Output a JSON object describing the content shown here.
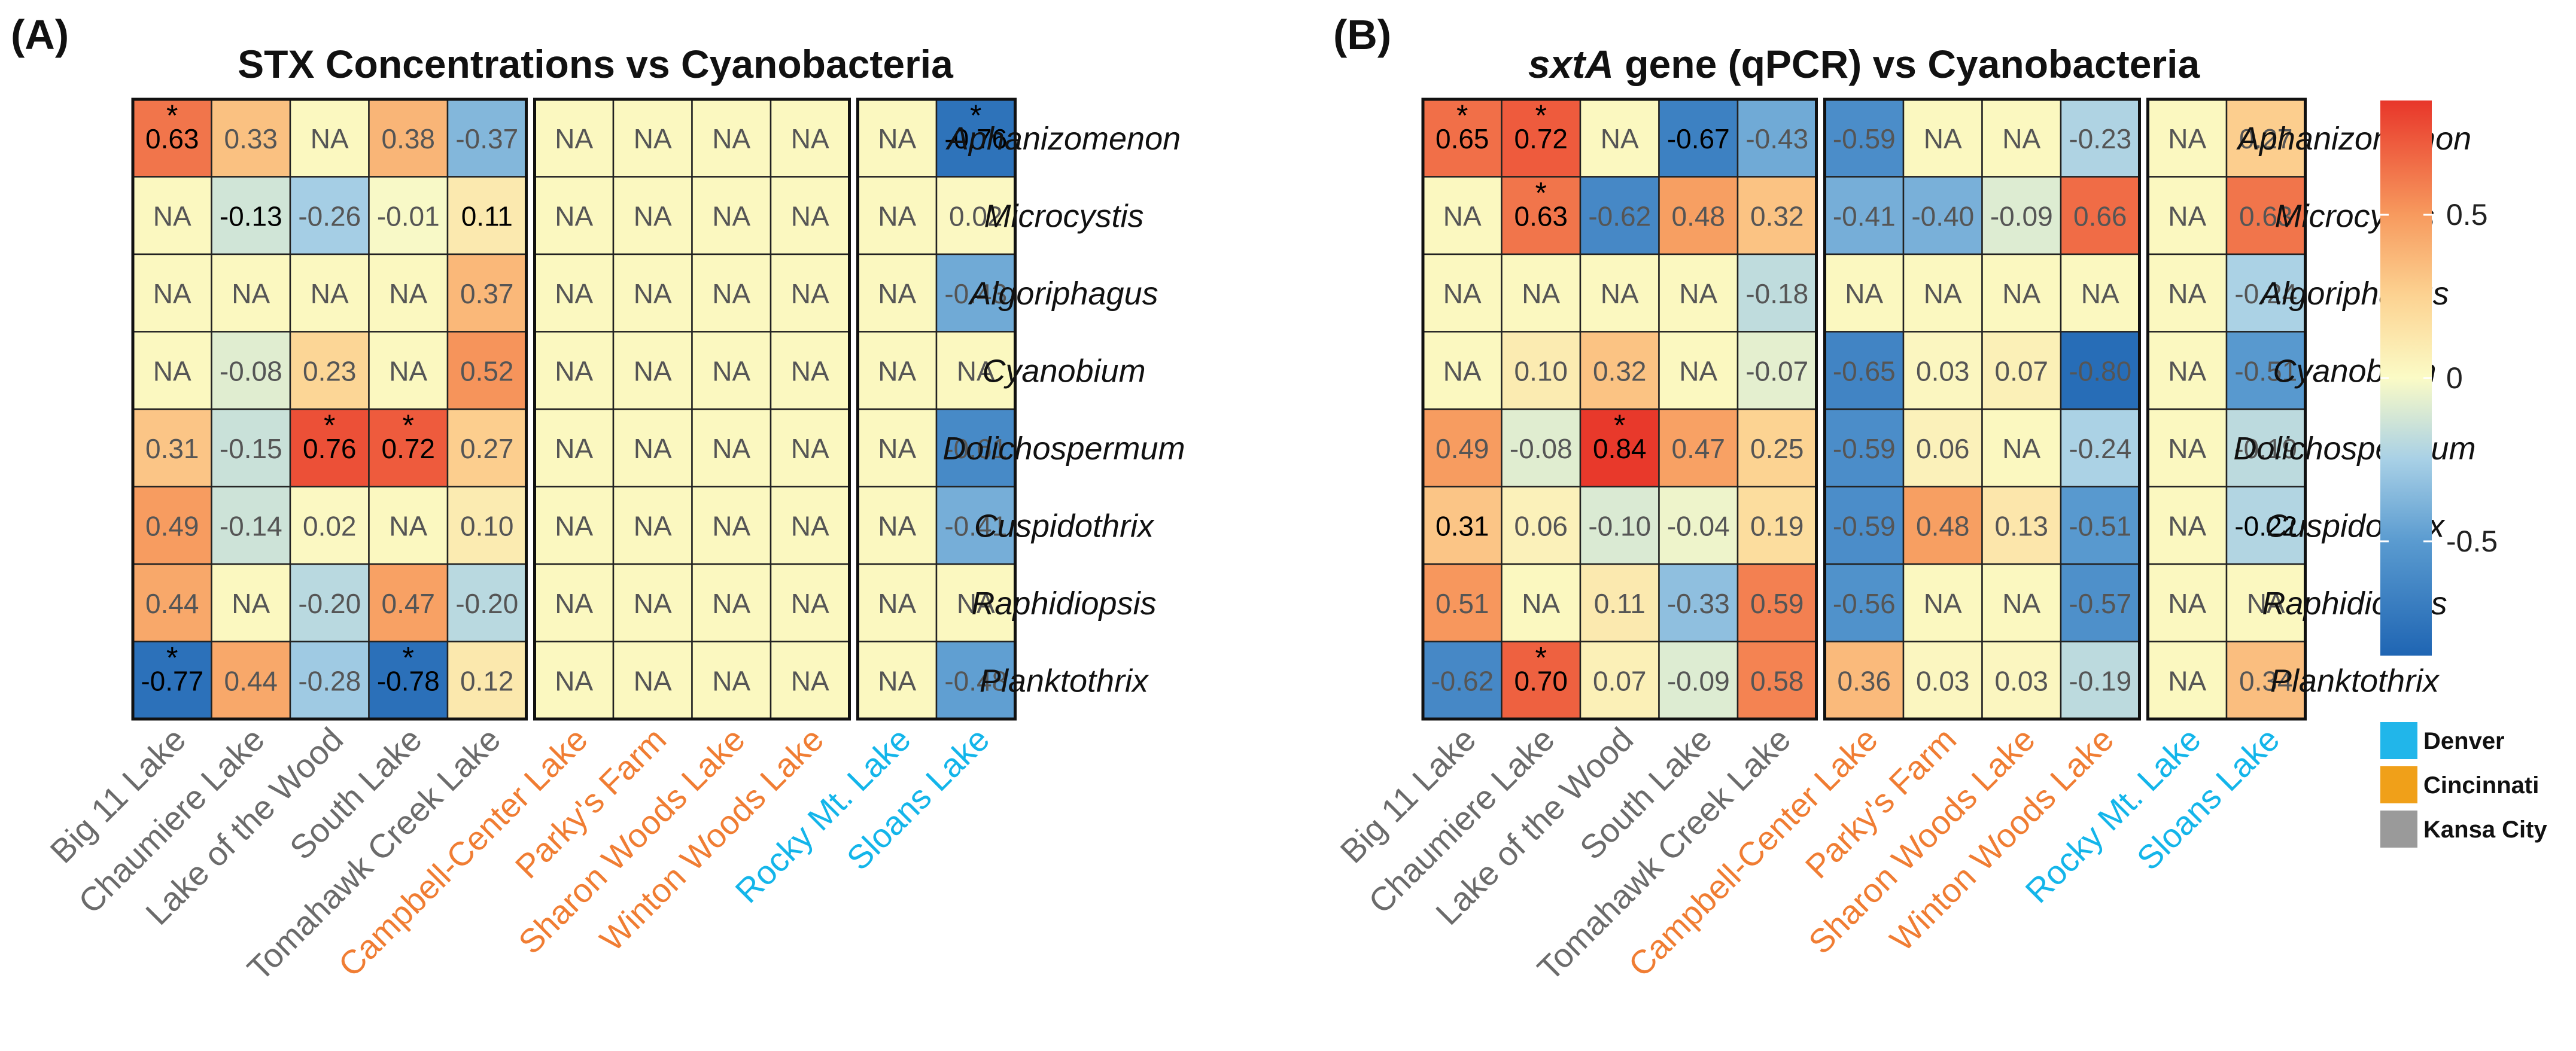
{
  "figure_labels": {
    "a": "(A)",
    "b": "(B)"
  },
  "chart_data": [
    {
      "type": "heatmap",
      "panel": "(A)",
      "title": "STX Concentrations vs Cyanobacteria",
      "title_italic": "",
      "title_rest": "STX Concentrations vs Cyanobacteria",
      "rows": [
        "Aphanizomenon",
        "Microcystis",
        "Algoriphagus",
        "Cyanobium",
        "Dolichospermum",
        "Cuspidothrix",
        "Raphidiopsis",
        "Planktothrix"
      ],
      "columns": [
        "Big 11 Lake",
        "Chaumiere Lake",
        "Lake of the Wood",
        "South Lake",
        "Tomahawk Creek Lake",
        "Campbell-Center Lake",
        "Parky's Farm",
        "Sharon Woods Lake",
        "Winton Woods Lake",
        "Rocky Mt. Lake",
        "Sloans Lake"
      ],
      "column_groups": [
        {
          "city": "Kansa City",
          "count": 5
        },
        {
          "city": "Cincinnati",
          "count": 4
        },
        {
          "city": "Denver",
          "count": 2
        }
      ],
      "values": [
        [
          0.63,
          0.33,
          null,
          0.38,
          -0.37,
          null,
          null,
          null,
          null,
          null,
          -0.76
        ],
        [
          null,
          -0.13,
          -0.26,
          -0.01,
          0.11,
          null,
          null,
          null,
          null,
          null,
          0.02
        ],
        [
          null,
          null,
          null,
          null,
          0.37,
          null,
          null,
          null,
          null,
          null,
          -0.43
        ],
        [
          null,
          -0.08,
          0.23,
          null,
          0.52,
          null,
          null,
          null,
          null,
          null,
          null
        ],
        [
          0.31,
          -0.15,
          0.76,
          0.72,
          0.27,
          null,
          null,
          null,
          null,
          null,
          -0.61
        ],
        [
          0.49,
          -0.14,
          0.02,
          null,
          0.1,
          null,
          null,
          null,
          null,
          null,
          -0.41
        ],
        [
          0.44,
          null,
          -0.2,
          0.47,
          -0.2,
          null,
          null,
          null,
          null,
          null,
          null
        ],
        [
          -0.77,
          0.44,
          -0.28,
          -0.78,
          0.12,
          null,
          null,
          null,
          null,
          null,
          -0.48
        ]
      ],
      "labels": [
        [
          "0.63",
          "0.33",
          "NA",
          "0.38",
          "-0.37",
          "NA",
          "NA",
          "NA",
          "NA",
          "NA",
          "-0.76"
        ],
        [
          "NA",
          "-0.13",
          "-0.26",
          "-0.01",
          "0.11",
          "NA",
          "NA",
          "NA",
          "NA",
          "NA",
          "0.02"
        ],
        [
          "NA",
          "NA",
          "NA",
          "NA",
          "0.37",
          "NA",
          "NA",
          "NA",
          "NA",
          "NA",
          "-0.43"
        ],
        [
          "NA",
          "-0.08",
          "0.23",
          "NA",
          "0.52",
          "NA",
          "NA",
          "NA",
          "NA",
          "NA",
          "NA"
        ],
        [
          "0.31",
          "-0.15",
          "0.76",
          "0.72",
          "0.27",
          "NA",
          "NA",
          "NA",
          "NA",
          "NA",
          "-0.61"
        ],
        [
          "0.49",
          "-0.14",
          "0.02",
          "NA",
          "0.10",
          "NA",
          "NA",
          "NA",
          "NA",
          "NA",
          "-0.41"
        ],
        [
          "0.44",
          "NA",
          "-0.20",
          "0.47",
          "-0.20",
          "NA",
          "NA",
          "NA",
          "NA",
          "NA",
          "NA"
        ],
        [
          "-0.77",
          "0.44",
          "-0.28",
          "-0.78",
          "0.12",
          "NA",
          "NA",
          "NA",
          "NA",
          "NA",
          "-0.48"
        ]
      ],
      "significant": [
        [
          0,
          0
        ],
        [
          0,
          10
        ],
        [
          4,
          2
        ],
        [
          4,
          3
        ],
        [
          7,
          0
        ],
        [
          7,
          3
        ]
      ],
      "significance_marker": "*",
      "bold_labels": [
        [
          0,
          0
        ],
        [
          0,
          10
        ],
        [
          1,
          1
        ],
        [
          1,
          4
        ],
        [
          4,
          2
        ],
        [
          4,
          3
        ],
        [
          7,
          0
        ],
        [
          7,
          3
        ]
      ]
    },
    {
      "type": "heatmap",
      "panel": "(B)",
      "title": "sxtA gene (qPCR) vs Cyanobacteria",
      "title_italic": "sxtA",
      "title_rest": " gene (qPCR) vs Cyanobacteria",
      "rows": [
        "Aphanizomenon",
        "Microcystis",
        "Algoriphagus",
        "Cyanobium",
        "Dolichospermum",
        "Cuspidothrix",
        "Raphidiopsis",
        "Planktothrix"
      ],
      "columns": [
        "Big 11 Lake",
        "Chaumiere Lake",
        "Lake of the Wood",
        "South Lake",
        "Tomahawk Creek Lake",
        "Campbell-Center Lake",
        "Parky's Farm",
        "Sharon Woods Lake",
        "Winton Woods Lake",
        "Rocky Mt. Lake",
        "Sloans Lake"
      ],
      "column_groups": [
        {
          "city": "Kansa City",
          "count": 5
        },
        {
          "city": "Cincinnati",
          "count": 4
        },
        {
          "city": "Denver",
          "count": 2
        }
      ],
      "values": [
        [
          0.65,
          0.72,
          null,
          -0.67,
          -0.43,
          -0.59,
          null,
          null,
          -0.23,
          null,
          0.27
        ],
        [
          null,
          0.63,
          -0.62,
          0.48,
          0.32,
          -0.41,
          -0.4,
          -0.09,
          0.66,
          null,
          0.63
        ],
        [
          null,
          null,
          null,
          null,
          -0.18,
          null,
          null,
          null,
          null,
          null,
          -0.24
        ],
        [
          null,
          0.1,
          0.32,
          null,
          -0.07,
          -0.65,
          0.03,
          0.07,
          -0.8,
          null,
          -0.51
        ],
        [
          0.49,
          -0.08,
          0.84,
          0.47,
          0.25,
          -0.59,
          0.06,
          null,
          -0.24,
          null,
          -0.19
        ],
        [
          0.31,
          0.06,
          -0.1,
          -0.04,
          0.19,
          -0.59,
          0.48,
          0.13,
          -0.51,
          null,
          -0.22
        ],
        [
          0.51,
          null,
          0.11,
          -0.33,
          0.59,
          -0.56,
          null,
          null,
          -0.57,
          null,
          null
        ],
        [
          -0.62,
          0.7,
          0.07,
          -0.09,
          0.58,
          0.36,
          0.03,
          0.03,
          -0.19,
          null,
          0.34
        ]
      ],
      "labels": [
        [
          "0.65",
          "0.72",
          "NA",
          "-0.67",
          "-0.43",
          "-0.59",
          "NA",
          "NA",
          "-0.23",
          "NA",
          "0.27"
        ],
        [
          "NA",
          "0.63",
          "-0.62",
          "0.48",
          "0.32",
          "-0.41",
          "-0.40",
          "-0.09",
          "0.66",
          "NA",
          "0.63"
        ],
        [
          "NA",
          "NA",
          "NA",
          "NA",
          "-0.18",
          "NA",
          "NA",
          "NA",
          "NA",
          "NA",
          "-0.24"
        ],
        [
          "NA",
          "0.10",
          "0.32",
          "NA",
          "-0.07",
          "-0.65",
          "0.03",
          "0.07",
          "-0.80",
          "NA",
          "-0.51"
        ],
        [
          "0.49",
          "-0.08",
          "0.84",
          "0.47",
          "0.25",
          "-0.59",
          "0.06",
          "NA",
          "-0.24",
          "NA",
          "-0.19"
        ],
        [
          "0.31",
          "0.06",
          "-0.10",
          "-0.04",
          "0.19",
          "-0.59",
          "0.48",
          "0.13",
          "-0.51",
          "NA",
          "-0.22"
        ],
        [
          "0.51",
          "NA",
          "0.11",
          "-0.33",
          "0.59",
          "-0.56",
          "NA",
          "NA",
          "-0.57",
          "NA",
          "NA"
        ],
        [
          "-0.62",
          "0.70",
          "0.07",
          "-0.09",
          "0.58",
          "0.36",
          "0.03",
          "0.03",
          "-0.19",
          "NA",
          "0.34"
        ]
      ],
      "significant": [
        [
          0,
          0
        ],
        [
          0,
          1
        ],
        [
          1,
          1
        ],
        [
          4,
          2
        ],
        [
          7,
          1
        ]
      ],
      "significance_marker": "*",
      "bold_labels": [
        [
          0,
          0
        ],
        [
          0,
          1
        ],
        [
          0,
          3
        ],
        [
          1,
          1
        ],
        [
          4,
          2
        ],
        [
          5,
          0
        ],
        [
          5,
          10
        ],
        [
          7,
          1
        ]
      ]
    }
  ],
  "colorbar": {
    "range": [
      -0.85,
      0.85
    ],
    "ticks": [
      {
        "value": 0.5,
        "label": "0.5"
      },
      {
        "value": 0,
        "label": "0"
      },
      {
        "value": -0.5,
        "label": "-0.5"
      }
    ],
    "stops": [
      {
        "value": -0.85,
        "color": "#1f65b3"
      },
      {
        "value": -0.5,
        "color": "#5a9bd0"
      },
      {
        "value": -0.25,
        "color": "#a8d0e6"
      },
      {
        "value": 0,
        "color": "#fbfbc6"
      },
      {
        "value": 0.25,
        "color": "#fcd392"
      },
      {
        "value": 0.5,
        "color": "#f79a5e"
      },
      {
        "value": 0.85,
        "color": "#e8362a"
      }
    ]
  },
  "na_color": "#fbf8c0",
  "city_legend": [
    {
      "city": "Denver",
      "color": "#21b6ea"
    },
    {
      "city": "Cincinnati",
      "color": "#f0a019"
    },
    {
      "city": "Kansa City",
      "color": "#9a9a9a"
    }
  ],
  "label_colors": {
    "Kansa City": "#6b6b6b",
    "Cincinnati": "#f07d33",
    "Denver": "#13b5ea"
  }
}
